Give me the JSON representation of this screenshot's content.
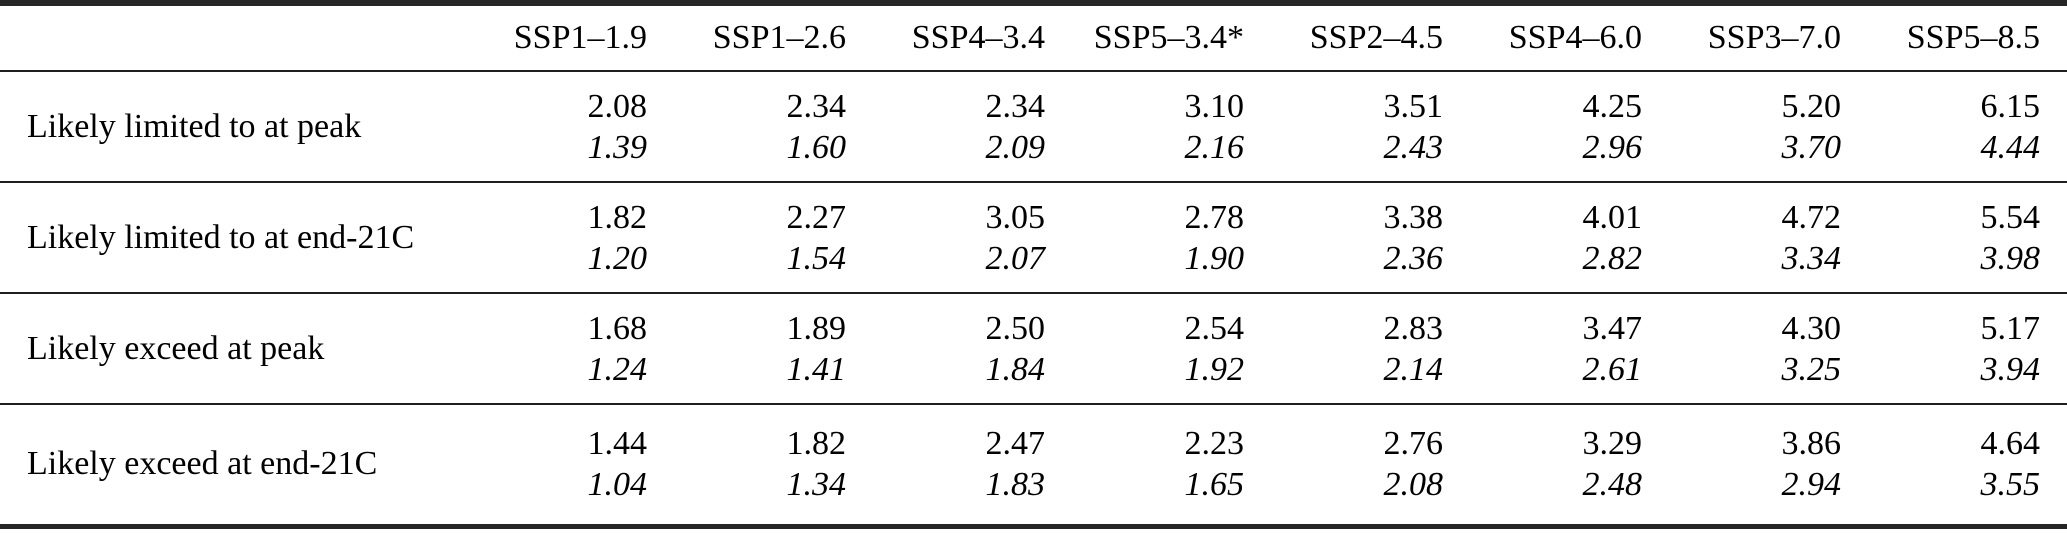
{
  "table": {
    "corner_label": "",
    "columns": [
      "SSP1–1.9",
      "SSP1–2.6",
      "SSP4–3.4",
      "SSP5–3.4*",
      "SSP2–4.5",
      "SSP4–6.0",
      "SSP3–7.0",
      "SSP5–8.5"
    ],
    "rows": [
      {
        "label": "Likely limited to at peak",
        "upright": [
          "2.08",
          "2.34",
          "2.34",
          "3.10",
          "3.51",
          "4.25",
          "5.20",
          "6.15"
        ],
        "italic": [
          "1.39",
          "1.60",
          "2.09",
          "2.16",
          "2.43",
          "2.96",
          "3.70",
          "4.44"
        ]
      },
      {
        "label": "Likely limited to at end-21C",
        "upright": [
          "1.82",
          "2.27",
          "3.05",
          "2.78",
          "3.38",
          "4.01",
          "4.72",
          "5.54"
        ],
        "italic": [
          "1.20",
          "1.54",
          "2.07",
          "1.90",
          "2.36",
          "2.82",
          "3.34",
          "3.98"
        ]
      },
      {
        "label": "Likely exceed at peak",
        "upright": [
          "1.68",
          "1.89",
          "2.50",
          "2.54",
          "2.83",
          "3.47",
          "4.30",
          "5.17"
        ],
        "italic": [
          "1.24",
          "1.41",
          "1.84",
          "1.92",
          "2.14",
          "2.61",
          "3.25",
          "3.94"
        ]
      },
      {
        "label": "Likely exceed at end-21C",
        "upright": [
          "1.44",
          "1.82",
          "2.47",
          "2.23",
          "2.76",
          "3.29",
          "3.86",
          "4.64"
        ],
        "italic": [
          "1.04",
          "1.34",
          "1.83",
          "1.65",
          "2.08",
          "2.48",
          "2.94",
          "3.55"
        ]
      }
    ]
  },
  "colors": {
    "heavy_rule": "#262626",
    "light_rule": "#1f1f1f",
    "text": "#000000",
    "background": "#ffffff"
  }
}
